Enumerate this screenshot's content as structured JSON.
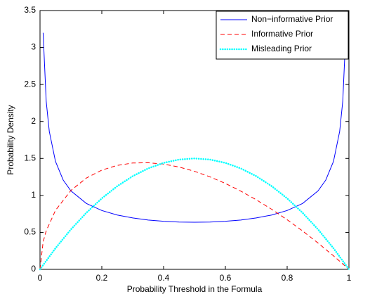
{
  "chart_data": {
    "type": "line",
    "xlabel": "Probability Threshold in the Formula",
    "ylabel": "Probability Density",
    "xlim": [
      0,
      1
    ],
    "ylim": [
      0,
      3.5
    ],
    "xticks": [
      0,
      0.2,
      0.4,
      0.6,
      0.8,
      1
    ],
    "yticks": [
      0,
      0.5,
      1,
      1.5,
      2,
      2.5,
      3,
      3.5
    ],
    "legend": "upper right",
    "series": [
      {
        "name": "Non−informative Prior",
        "color": "#0000ff",
        "style": "solid",
        "x": [
          0.01,
          0.02,
          0.03,
          0.05,
          0.075,
          0.1,
          0.15,
          0.2,
          0.25,
          0.3,
          0.35,
          0.4,
          0.45,
          0.5,
          0.55,
          0.6,
          0.65,
          0.7,
          0.75,
          0.8,
          0.85,
          0.9,
          0.925,
          0.95,
          0.97,
          0.98,
          0.99
        ],
        "values": [
          3.199,
          2.274,
          1.866,
          1.46,
          1.208,
          1.061,
          0.891,
          0.796,
          0.735,
          0.695,
          0.667,
          0.65,
          0.64,
          0.637,
          0.64,
          0.65,
          0.667,
          0.695,
          0.735,
          0.796,
          0.891,
          1.061,
          1.208,
          1.46,
          1.866,
          2.274,
          3.199
        ]
      },
      {
        "name": "Informative Prior",
        "color": "#ff0000",
        "style": "dashed",
        "x": [
          0,
          0.01,
          0.02,
          0.05,
          0.1,
          0.15,
          0.2,
          0.25,
          0.3,
          0.35,
          0.4,
          0.45,
          0.5,
          0.55,
          0.6,
          0.65,
          0.7,
          0.75,
          0.8,
          0.85,
          0.9,
          0.95,
          1
        ],
        "values": [
          0,
          0.371,
          0.52,
          0.797,
          1.067,
          1.235,
          1.342,
          1.406,
          1.438,
          1.442,
          1.423,
          1.384,
          1.326,
          1.251,
          1.162,
          1.058,
          0.941,
          0.812,
          0.671,
          0.519,
          0.356,
          0.183,
          0
        ]
      },
      {
        "name": "Misleading Prior",
        "color": "#00ffff",
        "style": "dotted",
        "x": [
          0,
          0.05,
          0.1,
          0.15,
          0.2,
          0.25,
          0.3,
          0.35,
          0.4,
          0.45,
          0.5,
          0.55,
          0.6,
          0.65,
          0.7,
          0.75,
          0.8,
          0.85,
          0.9,
          0.95,
          1
        ],
        "values": [
          0,
          0.285,
          0.54,
          0.765,
          0.96,
          1.125,
          1.26,
          1.365,
          1.44,
          1.485,
          1.5,
          1.485,
          1.44,
          1.365,
          1.26,
          1.125,
          0.96,
          0.765,
          0.54,
          0.285,
          0
        ]
      }
    ]
  }
}
